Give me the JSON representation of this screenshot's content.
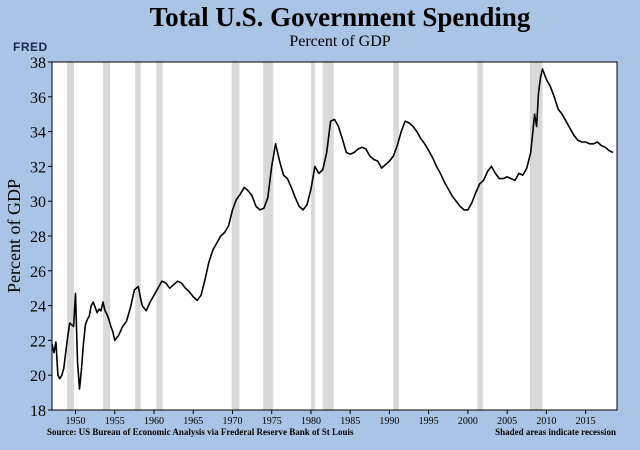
{
  "header": {
    "title": "Total U.S. Government Spending",
    "subtitle": "Percent of GDP",
    "logo": "FRED"
  },
  "footer": {
    "source": "Source: US Bureau of Economic Analysis via Frederal Reserve Bank of St Louis",
    "recession_note": "Shaded areas indicate recession"
  },
  "colors": {
    "background": "#a9c4e4",
    "plot_bg": "#ffffff",
    "line": "#000000",
    "recession": "#d9d9d9"
  },
  "chart_data": {
    "type": "line",
    "title": "Total U.S. Government Spending",
    "subtitle": "Percent of GDP",
    "xlabel": "",
    "ylabel": "Percent of GDP",
    "xlim": [
      1947,
      2019
    ],
    "ylim": [
      18,
      38
    ],
    "grid": false,
    "yticks": [
      18,
      20,
      22,
      24,
      26,
      28,
      30,
      32,
      34,
      36,
      38
    ],
    "xticks": [
      1950,
      1955,
      1960,
      1965,
      1970,
      1975,
      1980,
      1985,
      1990,
      1995,
      2000,
      2005,
      2010,
      2015
    ],
    "recessions": [
      [
        1948.9,
        1949.8
      ],
      [
        1953.5,
        1954.4
      ],
      [
        1957.6,
        1958.3
      ],
      [
        1960.3,
        1961.1
      ],
      [
        1969.9,
        1970.9
      ],
      [
        1973.9,
        1975.2
      ],
      [
        1980.0,
        1980.5
      ],
      [
        1981.5,
        1982.9
      ],
      [
        1990.5,
        1991.2
      ],
      [
        2001.2,
        2001.9
      ],
      [
        2007.9,
        2009.5
      ]
    ],
    "series": [
      {
        "name": "Total U.S. Government Spending",
        "x": [
          1947.0,
          1947.25,
          1947.5,
          1947.75,
          1948.0,
          1948.25,
          1948.5,
          1948.75,
          1949.0,
          1949.25,
          1949.5,
          1949.75,
          1950.0,
          1950.25,
          1950.5,
          1950.75,
          1951.0,
          1951.25,
          1951.5,
          1951.75,
          1952.0,
          1952.25,
          1952.5,
          1952.75,
          1953.0,
          1953.25,
          1953.5,
          1953.75,
          1954.0,
          1954.25,
          1954.5,
          1954.75,
          1955.0,
          1955.5,
          1956.0,
          1956.5,
          1957.0,
          1957.5,
          1958.0,
          1958.25,
          1958.5,
          1959.0,
          1959.5,
          1960.0,
          1960.5,
          1961.0,
          1961.5,
          1962.0,
          1962.5,
          1963.0,
          1963.5,
          1964.0,
          1964.5,
          1965.0,
          1965.5,
          1966.0,
          1966.5,
          1967.0,
          1967.5,
          1968.0,
          1968.5,
          1969.0,
          1969.5,
          1970.0,
          1970.5,
          1971.0,
          1971.5,
          1972.0,
          1972.5,
          1973.0,
          1973.5,
          1974.0,
          1974.5,
          1975.0,
          1975.5,
          1976.0,
          1976.5,
          1977.0,
          1977.5,
          1978.0,
          1978.5,
          1979.0,
          1979.5,
          1980.0,
          1980.5,
          1981.0,
          1981.5,
          1982.0,
          1982.5,
          1983.0,
          1983.5,
          1984.0,
          1984.5,
          1985.0,
          1985.5,
          1986.0,
          1986.5,
          1987.0,
          1987.5,
          1988.0,
          1988.5,
          1989.0,
          1989.5,
          1990.0,
          1990.5,
          1991.0,
          1991.5,
          1992.0,
          1992.5,
          1993.0,
          1993.5,
          1994.0,
          1994.5,
          1995.0,
          1995.5,
          1996.0,
          1996.5,
          1997.0,
          1997.5,
          1998.0,
          1998.5,
          1999.0,
          1999.5,
          2000.0,
          2000.5,
          2001.0,
          2001.5,
          2002.0,
          2002.5,
          2003.0,
          2003.5,
          2004.0,
          2004.5,
          2005.0,
          2005.5,
          2006.0,
          2006.5,
          2007.0,
          2007.5,
          2008.0,
          2008.5,
          2008.75,
          2009.0,
          2009.25,
          2009.5,
          2009.75,
          2010.0,
          2010.5,
          2011.0,
          2011.5,
          2012.0,
          2012.5,
          2013.0,
          2013.5,
          2014.0,
          2014.5,
          2015.0,
          2015.5,
          2016.0,
          2016.5,
          2017.0,
          2017.5,
          2018.0,
          2018.5
        ],
        "values": [
          21.8,
          21.3,
          21.9,
          20.0,
          19.8,
          20.0,
          20.4,
          21.3,
          22.2,
          23.0,
          22.9,
          22.8,
          24.7,
          20.8,
          19.2,
          20.3,
          21.8,
          22.9,
          23.2,
          23.4,
          24.0,
          24.2,
          23.9,
          23.6,
          23.8,
          23.7,
          24.2,
          23.7,
          23.5,
          23.2,
          22.8,
          22.5,
          22.0,
          22.3,
          22.8,
          23.1,
          23.9,
          24.9,
          25.1,
          24.5,
          24.0,
          23.7,
          24.2,
          24.6,
          25.0,
          25.4,
          25.3,
          25.0,
          25.2,
          25.4,
          25.3,
          25.0,
          24.8,
          24.5,
          24.3,
          24.6,
          25.5,
          26.5,
          27.2,
          27.6,
          28.0,
          28.2,
          28.6,
          29.5,
          30.1,
          30.4,
          30.8,
          30.6,
          30.3,
          29.7,
          29.5,
          29.6,
          30.2,
          32.0,
          33.3,
          32.3,
          31.5,
          31.3,
          30.8,
          30.2,
          29.7,
          29.5,
          29.8,
          30.7,
          32.0,
          31.6,
          31.8,
          32.8,
          34.6,
          34.7,
          34.3,
          33.6,
          32.8,
          32.7,
          32.8,
          33.0,
          33.1,
          33.0,
          32.6,
          32.4,
          32.3,
          31.9,
          32.1,
          32.3,
          32.6,
          33.2,
          34.0,
          34.6,
          34.5,
          34.3,
          34.0,
          33.6,
          33.3,
          32.9,
          32.5,
          32.0,
          31.6,
          31.1,
          30.7,
          30.3,
          30.0,
          29.7,
          29.5,
          29.5,
          29.9,
          30.5,
          31.0,
          31.2,
          31.7,
          32.0,
          31.6,
          31.3,
          31.3,
          31.4,
          31.3,
          31.2,
          31.6,
          31.5,
          31.9,
          32.8,
          35.0,
          34.3,
          36.2,
          37.1,
          37.6,
          37.3,
          37.0,
          36.6,
          36.0,
          35.3,
          35.0,
          34.6,
          34.2,
          33.8,
          33.5,
          33.4,
          33.4,
          33.3,
          33.3,
          33.4,
          33.2,
          33.1,
          32.9,
          32.8
        ]
      }
    ]
  }
}
